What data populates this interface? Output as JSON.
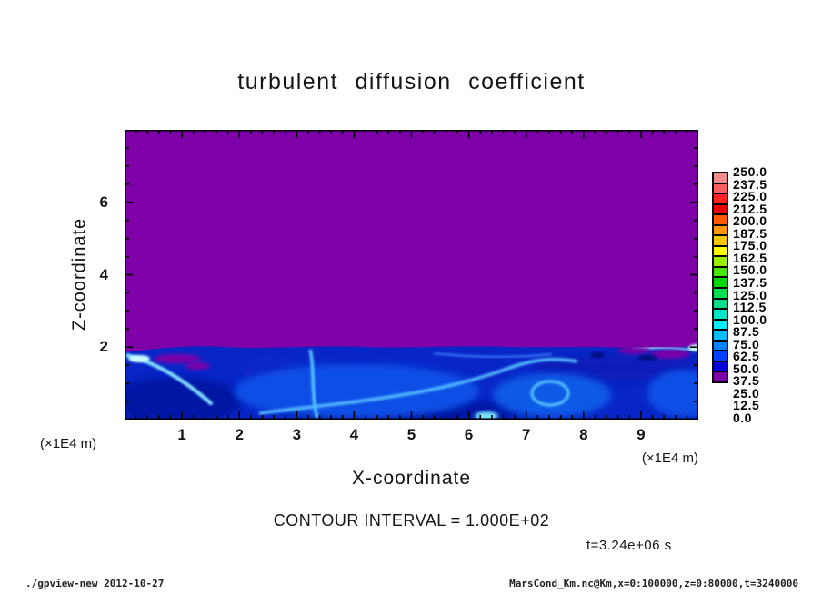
{
  "title": "turbulent diffusion coefficient",
  "plot": {
    "x_axis": {
      "label": "X-coordinate",
      "unit": "(×1E4 m)",
      "range": [
        0,
        10
      ],
      "major_tick_values": [
        1,
        2,
        3,
        4,
        5,
        6,
        7,
        8,
        9
      ],
      "tick_labels": [
        "1",
        "2",
        "3",
        "4",
        "5",
        "6",
        "7",
        "8",
        "9"
      ],
      "minor_step": 0.2
    },
    "z_axis": {
      "label": "Z-coordinate",
      "unit": "(×1E4 m)",
      "range": [
        0,
        8
      ],
      "major_tick_values": [
        2,
        4,
        6
      ],
      "tick_labels": [
        "2",
        "4",
        "6"
      ],
      "minor_step": 0.5
    }
  },
  "annotations": {
    "contour_interval": "CONTOUR INTERVAL = 1.000E+02",
    "time_label": "t=3.24e+06 s",
    "x_unit_left": "(×1E4 m)",
    "x_unit_right": "(×1E4 m)"
  },
  "footer": {
    "left": "./gpview-new  2012-10-27",
    "right": "MarsCond_Km.nc@Km,x=0:100000,z=0:80000,t=3240000"
  },
  "colorbar": {
    "tick_labels": [
      "250.0",
      "237.5",
      "225.0",
      "212.5",
      "200.0",
      "187.5",
      "175.0",
      "162.5",
      "150.0",
      "137.5",
      "125.0",
      "112.5",
      "100.0",
      "87.5",
      "75.0",
      "62.5",
      "50.0",
      "37.5",
      "25.0",
      "12.5",
      "0.0"
    ],
    "colors_top_to_bottom": [
      "#F08C8C",
      "#FA5F5F",
      "#FF2323",
      "#EB0000",
      "#FF5A00",
      "#FF9600",
      "#FFC800",
      "#FFFF00",
      "#96F000",
      "#46E600",
      "#00D700",
      "#00DC50",
      "#00DC8C",
      "#00E6C8",
      "#00F0FA",
      "#00BEFF",
      "#0082FF",
      "#0041FF",
      "#0000DC",
      "#7D00A8"
    ]
  },
  "chart_data": {
    "type": "heatmap",
    "title": "turbulent diffusion coefficient",
    "xlabel": "X-coordinate (×1E4 m)",
    "ylabel": "Z-coordinate (×1E4 m)",
    "x_range": [
      0,
      10
    ],
    "z_range": [
      0,
      8
    ],
    "x_range_meters": [
      0,
      100000
    ],
    "z_range_meters": [
      0,
      80000
    ],
    "time_seconds": 3240000,
    "contour_interval": 100.0,
    "colorbar_levels": [
      0.0,
      12.5,
      25.0,
      37.5,
      50.0,
      62.5,
      75.0,
      87.5,
      100.0,
      112.5,
      125.0,
      137.5,
      150.0,
      162.5,
      175.0,
      187.5,
      200.0,
      212.5,
      225.0,
      237.5,
      250.0
    ],
    "legend_position": "right",
    "grid": false,
    "regions": [
      {
        "z_range": [
          2,
          8
        ],
        "x_range": [
          0,
          10
        ],
        "value_range": [
          0,
          12.5
        ],
        "description": "uniform minimum field value, rendered solid purple above z ≈ 2×10^4 m"
      },
      {
        "z_range": [
          0,
          2
        ],
        "x_range": [
          0,
          10
        ],
        "value_range": [
          12.5,
          100
        ],
        "description": "turbulent boundary layer: mostly 12.5–75 (blue shades) with bright cyan filaments and eddies (~75–100) near x≈0.3, 3.3, 5.3, 6.4 and along the z≈2 interface"
      }
    ]
  }
}
